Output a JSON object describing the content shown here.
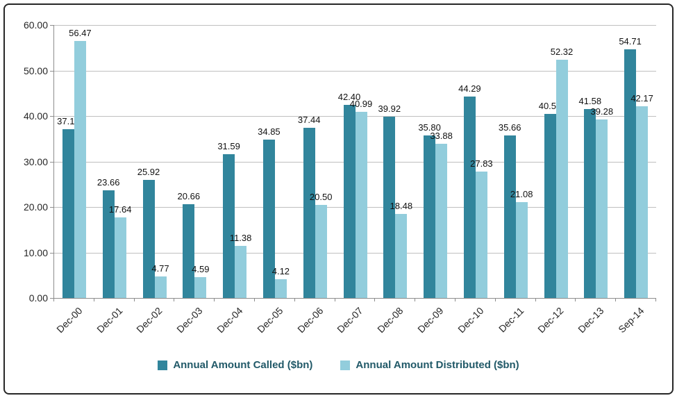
{
  "chart_data": {
    "type": "bar",
    "title": "",
    "categories": [
      "Dec-00",
      "Dec-01",
      "Dec-02",
      "Dec-03",
      "Dec-04",
      "Dec-05",
      "Dec-06",
      "Dec-07",
      "Dec-08",
      "Dec-09",
      "Dec-10",
      "Dec-11",
      "Dec-12",
      "Dec-13",
      "Sep-14"
    ],
    "series": [
      {
        "name": "Annual Amount Called ($bn)",
        "color": "#31859C",
        "values": [
          37.15,
          23.66,
          25.92,
          20.66,
          31.59,
          34.85,
          37.44,
          42.4,
          39.92,
          35.8,
          44.29,
          35.66,
          40.5,
          41.58,
          54.71
        ]
      },
      {
        "name": "Annual Amount Distributed ($bn)",
        "color": "#92CDDC",
        "values": [
          56.47,
          17.64,
          4.77,
          4.59,
          11.38,
          4.12,
          20.5,
          40.99,
          18.48,
          33.88,
          27.83,
          21.08,
          52.32,
          39.28,
          42.17
        ]
      }
    ],
    "xlabel": "",
    "ylabel": "",
    "ylim": [
      0,
      60
    ],
    "ytick_step": 10,
    "ytick_labels": [
      "0.00",
      "10.00",
      "20.00",
      "30.00",
      "40.00",
      "50.00",
      "60.00"
    ],
    "grid": true,
    "data_labels": true,
    "data_label_decimals": 2,
    "legend_position": "bottom"
  },
  "colors": {
    "grid": "#BFBFBF",
    "axis": "#8C8C8C",
    "data_label_text": "#111111",
    "legend_text": "#215968",
    "chart_border": "#262626",
    "background": "#FFFFFF"
  }
}
